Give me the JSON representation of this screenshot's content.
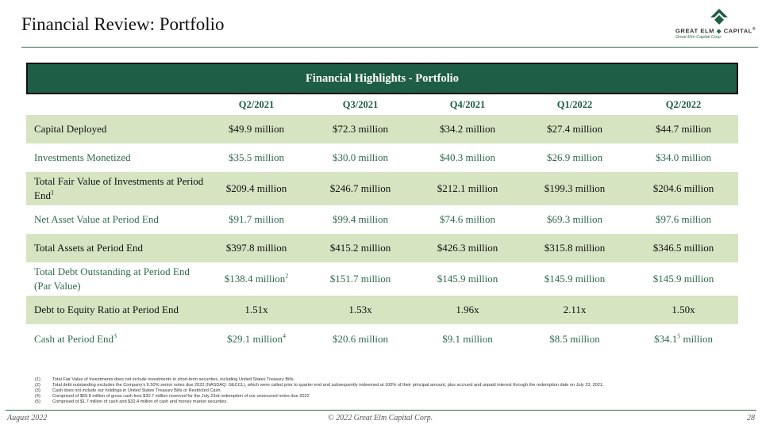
{
  "page": {
    "title": "Financial Review: Portfolio"
  },
  "logo": {
    "name": "GREAT ELM",
    "name_suffix": "CAPITAL",
    "reg": "®",
    "tagline": "Great Elm Capital Corp."
  },
  "table": {
    "title": "Financial Highlights - Portfolio",
    "columns": [
      "Q2/2021",
      "Q3/2021",
      "Q4/2021",
      "Q1/2022",
      "Q2/2022"
    ],
    "rows": [
      {
        "label": "Capital Deployed",
        "label_sup": "",
        "cells": [
          {
            "v": "$49.9 million",
            "sup": "",
            "tail": ""
          },
          {
            "v": "$72.3 million",
            "sup": "",
            "tail": ""
          },
          {
            "v": "$34.2 million",
            "sup": "",
            "tail": ""
          },
          {
            "v": "$27.4 million",
            "sup": "",
            "tail": ""
          },
          {
            "v": "$44.7 million",
            "sup": "",
            "tail": ""
          }
        ]
      },
      {
        "label": "Investments Monetized",
        "label_sup": "",
        "cells": [
          {
            "v": "$35.5 million",
            "sup": "",
            "tail": ""
          },
          {
            "v": "$30.0 million",
            "sup": "",
            "tail": ""
          },
          {
            "v": "$40.3 million",
            "sup": "",
            "tail": ""
          },
          {
            "v": "$26.9 million",
            "sup": "",
            "tail": ""
          },
          {
            "v": "$34.0 million",
            "sup": "",
            "tail": ""
          }
        ]
      },
      {
        "label": "Total Fair Value of Investments at Period End",
        "label_sup": "1",
        "cells": [
          {
            "v": "$209.4 million",
            "sup": "",
            "tail": ""
          },
          {
            "v": "$246.7 million",
            "sup": "",
            "tail": ""
          },
          {
            "v": "$212.1 million",
            "sup": "",
            "tail": ""
          },
          {
            "v": "$199.3 million",
            "sup": "",
            "tail": ""
          },
          {
            "v": "$204.6 million",
            "sup": "",
            "tail": ""
          }
        ]
      },
      {
        "label": "Net Asset Value at Period End",
        "label_sup": "",
        "cells": [
          {
            "v": "$91.7 million",
            "sup": "",
            "tail": ""
          },
          {
            "v": "$99.4 million",
            "sup": "",
            "tail": ""
          },
          {
            "v": "$74.6 million",
            "sup": "",
            "tail": ""
          },
          {
            "v": "$69.3 million",
            "sup": "",
            "tail": ""
          },
          {
            "v": "$97.6 million",
            "sup": "",
            "tail": ""
          }
        ]
      },
      {
        "label": "Total Assets at Period End",
        "label_sup": "",
        "cells": [
          {
            "v": "$397.8 million",
            "sup": "",
            "tail": ""
          },
          {
            "v": "$415.2 million",
            "sup": "",
            "tail": ""
          },
          {
            "v": "$426.3 million",
            "sup": "",
            "tail": ""
          },
          {
            "v": "$315.8 million",
            "sup": "",
            "tail": ""
          },
          {
            "v": "$346.5 million",
            "sup": "",
            "tail": ""
          }
        ]
      },
      {
        "label": "Total Debt Outstanding at Period End (Par Value)",
        "label_sup": "",
        "cells": [
          {
            "v": "$138.4 million",
            "sup": "2",
            "tail": ""
          },
          {
            "v": "$151.7 million",
            "sup": "",
            "tail": ""
          },
          {
            "v": "$145.9 million",
            "sup": "",
            "tail": ""
          },
          {
            "v": "$145.9 million",
            "sup": "",
            "tail": ""
          },
          {
            "v": "$145.9 million",
            "sup": "",
            "tail": ""
          }
        ]
      },
      {
        "label": "Debt to Equity Ratio at Period End",
        "label_sup": "",
        "cells": [
          {
            "v": "1.51x",
            "sup": "",
            "tail": ""
          },
          {
            "v": "1.53x",
            "sup": "",
            "tail": ""
          },
          {
            "v": "1.96x",
            "sup": "",
            "tail": ""
          },
          {
            "v": "2.11x",
            "sup": "",
            "tail": ""
          },
          {
            "v": "1.50x",
            "sup": "",
            "tail": ""
          }
        ]
      },
      {
        "label": "Cash at Period End",
        "label_sup": "3",
        "cells": [
          {
            "v": "$29.1 million",
            "sup": "4",
            "tail": ""
          },
          {
            "v": "$20.6 million",
            "sup": "",
            "tail": ""
          },
          {
            "v": "$9.1 million",
            "sup": "",
            "tail": ""
          },
          {
            "v": "$8.5 million",
            "sup": "",
            "tail": ""
          },
          {
            "v": "$34.1",
            "sup": "5",
            "tail": " million"
          }
        ]
      }
    ]
  },
  "footnotes": [
    {
      "num": "(1)",
      "text": "Total Fair Value of Investments does not include investments in short-term securities, including United States Treasury Bills."
    },
    {
      "num": "(2)",
      "text": "Total debt outstanding excludes the Company’s 6.50% senior notes due 2022 (NASDAQ: GECCL), which were called prior to quarter end and subsequently redeemed at 100% of their principal amount, plus accrued and unpaid interest through the redemption date on July 23, 2021."
    },
    {
      "num": "(3)",
      "text": "Cash does not include our holdings in United States Treasury Bills or Restricted Cash."
    },
    {
      "num": "(4)",
      "text": "Comprised of $59.8 million of gross cash less $30.7 million reserved for the July 23rd redemption of our unsecured notes due 2022"
    },
    {
      "num": "(5)",
      "text": "Comprised of $1.7 million of cash and $32.4 million of cash and money market securities."
    }
  ],
  "footer": {
    "date": "August 2022",
    "copyright": "© 2022 Great Elm Capital Corp.",
    "page_number": "28"
  },
  "colors": {
    "brand_green": "#1f5e46",
    "row_shade": "#d6e4c1",
    "text_green": "#2e6b4b"
  }
}
